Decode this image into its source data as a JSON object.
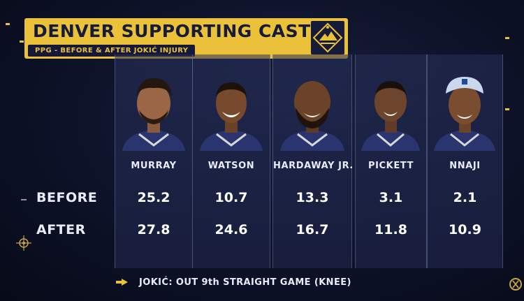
{
  "title": "DENVER SUPPORTING CAST",
  "subtitle": "PPG - BEFORE & AFTER JOKIĆ INJURY",
  "row_labels": {
    "before": "BEFORE",
    "after": "AFTER"
  },
  "players": [
    {
      "name": "MURRAY",
      "before": "25.2",
      "after": "27.8"
    },
    {
      "name": "WATSON",
      "before": "10.7",
      "after": "24.6"
    },
    {
      "name": "HARDAWAY JR.",
      "before": "13.3",
      "after": "16.7"
    },
    {
      "name": "PICKETT",
      "before": "3.1",
      "after": "11.8"
    },
    {
      "name": "NNAJI",
      "before": "2.1",
      "after": "10.9"
    }
  ],
  "note": "JOKIĆ: OUT 9th STRAIGHT GAME (KNEE)",
  "colors": {
    "accent_gold": "#ecc13a",
    "navy": "#161b3a",
    "background": "#0d1228",
    "jersey": "#2a3570"
  },
  "icons": {
    "team_logo": "nuggets-mountain-logo-icon",
    "note_marker": "arrow-icon"
  }
}
